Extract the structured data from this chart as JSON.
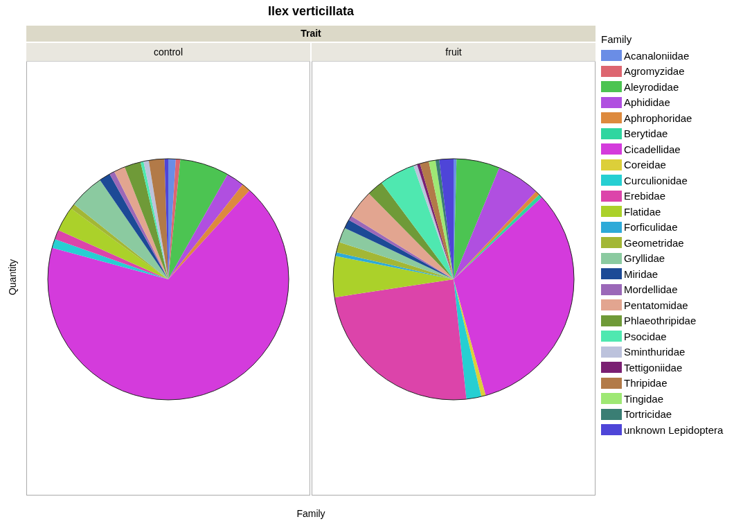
{
  "chart_data": [
    {
      "type": "pie",
      "title": "Ilex verticillata",
      "subtitle": "Trait",
      "annotations": [
        "control"
      ],
      "xlabel": "Family",
      "ylabel": "Quantity",
      "legend_title": "Family",
      "legend": "right",
      "categories": [
        "Acanaloniidae",
        "Agromyzidae",
        "Aleyrodidae",
        "Aphididae",
        "Aphrophoridae",
        "Berytidae",
        "Cicadellidae",
        "Coreidae",
        "Curculionidae",
        "Erebidae",
        "Flatidae",
        "Forficulidae",
        "Geometridae",
        "Gryllidae",
        "Miridae",
        "Mordellidae",
        "Pentatomidae",
        "Phlaeothripidae",
        "Psocidae",
        "Sminthuridae",
        "Tettigoniidae",
        "Thripidae",
        "Tingidae",
        "Tortricidae",
        "unknown Lepidoptera"
      ],
      "values": [
        1.0,
        0.6,
        6.6,
        2.4,
        1.2,
        0,
        67.4,
        0,
        1.2,
        1.3,
        3.3,
        0,
        0.7,
        4.7,
        1.5,
        0.7,
        1.5,
        2.2,
        0.4,
        0.7,
        0,
        2.1,
        0,
        0,
        0.5
      ],
      "colors": [
        "#6a8de6",
        "#dd6670",
        "#4cc452",
        "#b04fe0",
        "#dd8a3e",
        "#2fd6a0",
        "#d43bdc",
        "#dccf3a",
        "#26cfd2",
        "#dc44aa",
        "#abd12a",
        "#2eaad8",
        "#a3b735",
        "#8bcaa0",
        "#1c4a96",
        "#9b68b8",
        "#e2a590",
        "#6f9a38",
        "#4fe8b0",
        "#bcc2dc",
        "#7a1f72",
        "#b27a48",
        "#9ee874",
        "#3a7e74",
        "#4e45d8"
      ]
    },
    {
      "type": "pie",
      "annotations": [
        "fruit"
      ],
      "categories": [
        null,
        null,
        null,
        null,
        null,
        null,
        null,
        null,
        null,
        null,
        null,
        null,
        null,
        null,
        null,
        null,
        null,
        null,
        null,
        null,
        null,
        null,
        null,
        null,
        null
      ],
      "values": [
        0.4,
        0,
        5.8,
        5.8,
        0.6,
        0.5,
        32.6,
        0.6,
        2.0,
        24.3,
        5.5,
        0.5,
        1.4,
        2.0,
        1.2,
        0.6,
        3.8,
        2.2,
        4.8,
        0.5,
        0.4,
        1.2,
        0.9,
        0.5,
        1.9
      ],
      "colors": [
        "#6a8de6",
        "#dd6670",
        "#4cc452",
        "#b04fe0",
        "#dd8a3e",
        "#2fd6a0",
        "#d43bdc",
        "#dccf3a",
        "#26cfd2",
        "#dc44aa",
        "#abd12a",
        "#2eaad8",
        "#a3b735",
        "#8bcaa0",
        "#1c4a96",
        "#9b68b8",
        "#e2a590",
        "#6f9a38",
        "#4fe8b0",
        "#bcc2dc",
        "#7a1f72",
        "#b27a48",
        "#9ee874",
        "#3a7e74",
        "#4e45d8"
      ]
    }
  ]
}
